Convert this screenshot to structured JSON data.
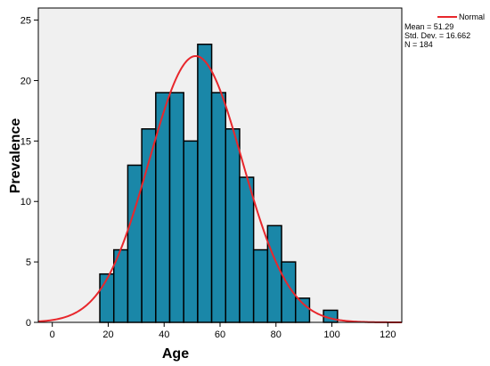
{
  "chart_data": {
    "type": "bar",
    "subtype": "histogram with normal curve",
    "xlabel": "Age",
    "ylabel": "Prevalence",
    "xlim": [
      -5,
      125
    ],
    "ylim": [
      0,
      26
    ],
    "x_ticks": [
      0,
      20,
      40,
      60,
      80,
      100,
      120
    ],
    "y_ticks": [
      0,
      5,
      10,
      15,
      20,
      25
    ],
    "bin_width": 5,
    "bins": [
      {
        "start": 17,
        "end": 22,
        "value": 4
      },
      {
        "start": 22,
        "end": 27,
        "value": 6
      },
      {
        "start": 27,
        "end": 32,
        "value": 13
      },
      {
        "start": 32,
        "end": 37,
        "value": 16
      },
      {
        "start": 37,
        "end": 42,
        "value": 19
      },
      {
        "start": 42,
        "end": 47,
        "value": 19
      },
      {
        "start": 47,
        "end": 52,
        "value": 15
      },
      {
        "start": 52,
        "end": 57,
        "value": 23
      },
      {
        "start": 57,
        "end": 62,
        "value": 19
      },
      {
        "start": 62,
        "end": 67,
        "value": 16
      },
      {
        "start": 67,
        "end": 72,
        "value": 12
      },
      {
        "start": 72,
        "end": 77,
        "value": 6
      },
      {
        "start": 77,
        "end": 82,
        "value": 8
      },
      {
        "start": 82,
        "end": 87,
        "value": 5
      },
      {
        "start": 87,
        "end": 92,
        "value": 2
      },
      {
        "start": 92,
        "end": 97,
        "value": 0
      },
      {
        "start": 97,
        "end": 102,
        "value": 1
      }
    ],
    "curve": {
      "name": "Normal",
      "mean": 51.29,
      "std_dev": 16.662,
      "n": 184
    },
    "legend": {
      "position": "top-right",
      "entries": [
        "Normal"
      ]
    },
    "stats_lines": [
      "Mean = 51.29",
      "Std. Dev. = 16.662",
      "N = 184"
    ],
    "grid": false,
    "colors": {
      "bar_fill": "#1a87a8",
      "bar_stroke": "#000000",
      "curve": "#e8272c",
      "plot_background": "#f0f0f0"
    }
  }
}
